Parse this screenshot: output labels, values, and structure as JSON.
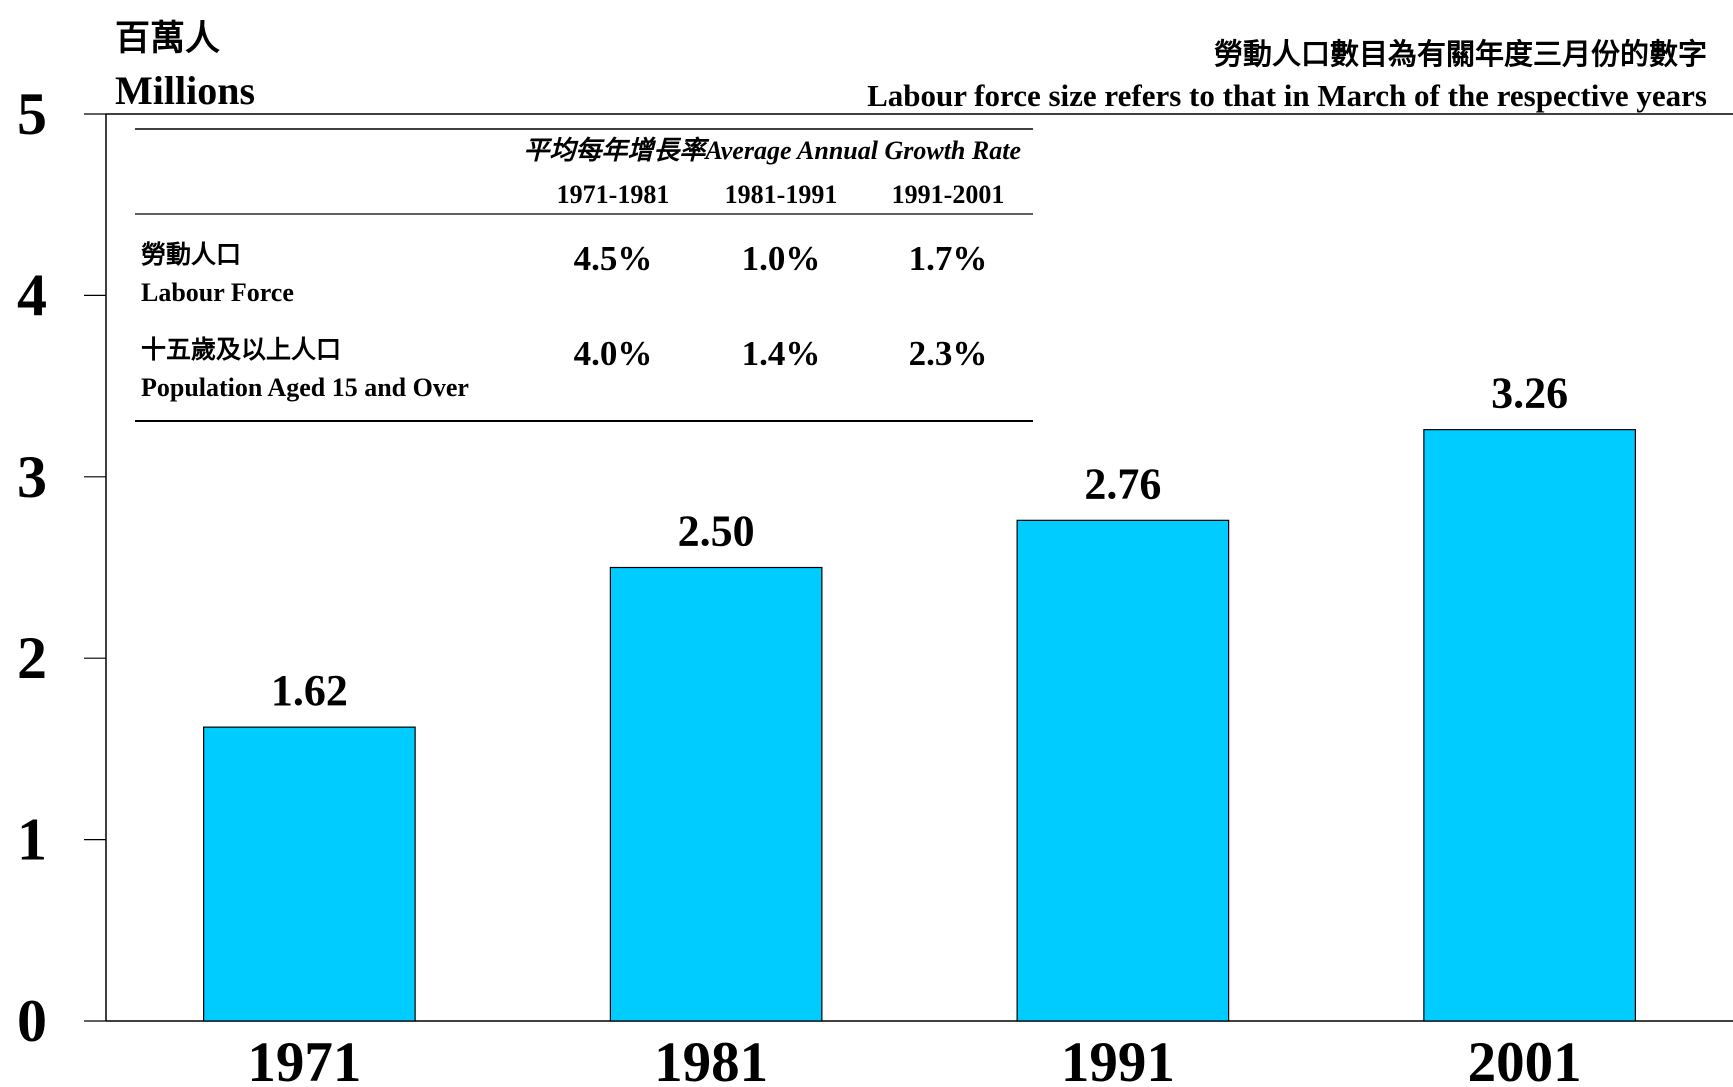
{
  "chart_data": {
    "type": "bar",
    "unit_zh": "百萬人",
    "unit_en": "Millions",
    "note_zh": "勞動人口數目為有關年度三月份的數字",
    "note_en": "Labour force size refers to that in March of the respective years",
    "categories": [
      "1971",
      "1981",
      "1991",
      "2001"
    ],
    "values": [
      1.62,
      2.5,
      2.76,
      3.26
    ],
    "value_labels": [
      "1.62",
      "2.50",
      "2.76",
      "3.26"
    ],
    "color": "#00ccff",
    "ylim": [
      0,
      5
    ],
    "yticks": [
      0,
      1,
      2,
      3,
      4,
      5
    ],
    "table": {
      "header_zh": "平均每年增長率",
      "header_en": "Average Annual Growth Rate",
      "columns": [
        "1971-1981",
        "1981-1991",
        "1991-2001"
      ],
      "rows": [
        {
          "label_zh": "勞動人口",
          "label_en": "Labour Force",
          "values": [
            "4.5%",
            "1.0%",
            "1.7%"
          ]
        },
        {
          "label_zh": "十五歲及以上人口",
          "label_en": "Population Aged 15 and Over",
          "values": [
            "4.0%",
            "1.4%",
            "2.3%"
          ]
        }
      ]
    }
  }
}
